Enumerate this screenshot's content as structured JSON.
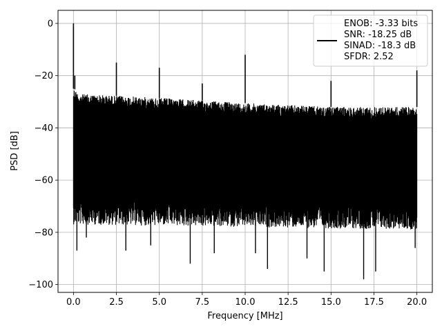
{
  "chart_data": {
    "type": "line",
    "title": "",
    "xlabel": "Frequency [MHz]",
    "ylabel": "PSD [dB]",
    "xlim": [
      -0.9,
      20.9
    ],
    "ylim": [
      -103,
      5
    ],
    "grid": true,
    "x_ticks": [
      0.0,
      2.5,
      5.0,
      7.5,
      10.0,
      12.5,
      15.0,
      17.5,
      20.0
    ],
    "x_tick_labels": [
      "0.0",
      "2.5",
      "5.0",
      "7.5",
      "10.0",
      "12.5",
      "15.0",
      "17.5",
      "20.0"
    ],
    "y_ticks": [
      0,
      -20,
      -40,
      -60,
      -80,
      -100
    ],
    "y_tick_labels": [
      "0",
      "−20",
      "−40",
      "−60",
      "−80",
      "−100"
    ],
    "legend": {
      "placement": "top-right",
      "lines": [
        "ENOB: -3.33 bits",
        "SNR: -18.25 dB",
        "SINAD: -18.3 dB",
        "SFDR: 2.52"
      ]
    },
    "series": [
      {
        "color": "#000000",
        "x_range": [
          0,
          20
        ],
        "noise_ceiling": [
          {
            "x": 0.05,
            "y": -25
          },
          {
            "x": 0.3,
            "y": -27
          },
          {
            "x": 5,
            "y": -28.5
          },
          {
            "x": 10,
            "y": -30.5
          },
          {
            "x": 15,
            "y": -32
          },
          {
            "x": 20,
            "y": -32
          }
        ],
        "noise_floor": [
          {
            "x": 0,
            "y": -68
          },
          {
            "x": 20,
            "y": -70
          }
        ],
        "spurs": [
          {
            "x": 0.0,
            "y": 0
          },
          {
            "x": 0.08,
            "y": -20
          },
          {
            "x": 2.5,
            "y": -15
          },
          {
            "x": 5.0,
            "y": -17
          },
          {
            "x": 7.5,
            "y": -23
          },
          {
            "x": 10.0,
            "y": -12
          },
          {
            "x": 15.0,
            "y": -22
          },
          {
            "x": 20.0,
            "y": -18
          }
        ],
        "dips": [
          {
            "x": 0.2,
            "y": -87
          },
          {
            "x": 0.75,
            "y": -82
          },
          {
            "x": 3.05,
            "y": -87
          },
          {
            "x": 4.5,
            "y": -85
          },
          {
            "x": 6.8,
            "y": -92
          },
          {
            "x": 8.2,
            "y": -88
          },
          {
            "x": 10.6,
            "y": -88
          },
          {
            "x": 11.3,
            "y": -94
          },
          {
            "x": 13.6,
            "y": -90
          },
          {
            "x": 14.6,
            "y": -95
          },
          {
            "x": 16.9,
            "y": -98
          },
          {
            "x": 17.6,
            "y": -95
          },
          {
            "x": 19.9,
            "y": -86
          }
        ]
      }
    ]
  }
}
